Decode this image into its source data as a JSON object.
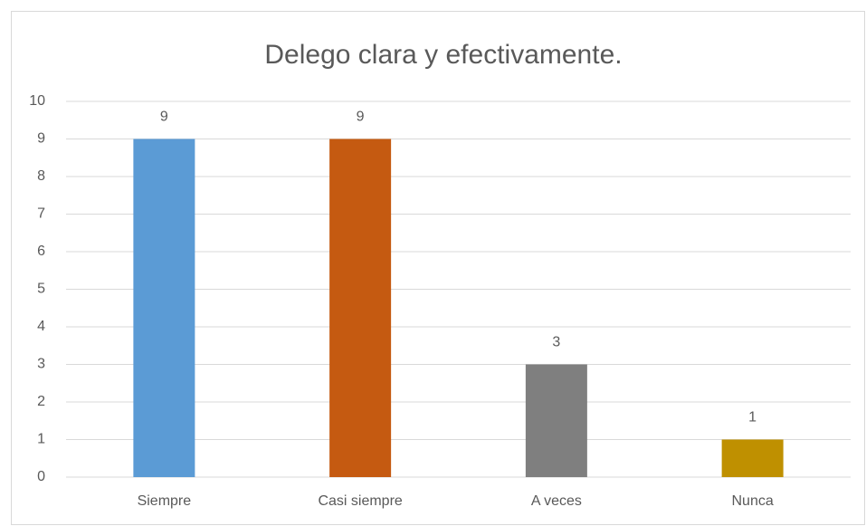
{
  "chart_data": {
    "type": "bar",
    "title": "Delego clara y efectivamente.",
    "categories": [
      "Siempre",
      "Casi siempre",
      "A veces",
      "Nunca"
    ],
    "values": [
      9,
      9,
      3,
      1
    ],
    "colors": [
      "#5b9bd5",
      "#c55a11",
      "#7f7f7f",
      "#bf9000"
    ],
    "ylim": [
      0,
      10
    ],
    "yticks": [
      0,
      1,
      2,
      3,
      4,
      5,
      6,
      7,
      8,
      9,
      10
    ],
    "grid": true
  }
}
